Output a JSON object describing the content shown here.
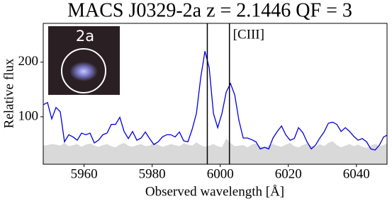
{
  "chart_data": {
    "type": "line",
    "title": "MACS J0329-2a z = 2.1446 QF = 3",
    "x_label": "Observed wavelength  [Å]",
    "y_label": "Relative flux",
    "inset_label": "2a",
    "xlim": [
      5948,
      6049
    ],
    "ylim": [
      13,
      271
    ],
    "xticks": [
      5960,
      5980,
      6000,
      6020,
      6040
    ],
    "yticks": [
      100,
      200
    ],
    "vlines": [
      {
        "x": 5996.2
      },
      {
        "x": 6002.7,
        "label": "[CIII]"
      }
    ],
    "x": [
      5948,
      5949.25,
      5950.5,
      5951.75,
      5953,
      5954.25,
      5955.5,
      5956.75,
      5958,
      5959.25,
      5960.5,
      5961.75,
      5963,
      5964.25,
      5965.5,
      5966.75,
      5968,
      5969.25,
      5970.5,
      5971.75,
      5973,
      5974.25,
      5975.5,
      5976.75,
      5978,
      5979.25,
      5980.5,
      5981.75,
      5983,
      5984.25,
      5985.5,
      5986.75,
      5988,
      5989.25,
      5990.5,
      5991.75,
      5993,
      5994.25,
      5995.5,
      5996.75,
      5998,
      5999.25,
      6000.5,
      6001.75,
      6003,
      6004.25,
      6005.5,
      6006.75,
      6008,
      6009.25,
      6010.5,
      6011.75,
      6013,
      6014.25,
      6015.5,
      6016.75,
      6018,
      6019.25,
      6020.5,
      6021.75,
      6023,
      6024.25,
      6025.5,
      6026.75,
      6028,
      6029.25,
      6030.5,
      6031.75,
      6033,
      6034.25,
      6035.5,
      6036.75,
      6038,
      6039.25,
      6040.5,
      6041.75,
      6043,
      6044.25,
      6045.5,
      6046.75,
      6048,
      6049.25
    ],
    "series": [
      {
        "color": "#d9d9d9",
        "fill": true,
        "values": [
          47,
          48,
          50,
          49,
          47,
          52,
          46,
          48,
          50,
          45,
          49,
          51,
          47,
          45,
          48,
          50,
          46,
          44,
          49,
          52,
          47,
          45,
          48,
          50,
          46,
          47,
          52,
          49,
          45,
          47,
          50,
          48,
          46,
          51,
          49,
          47,
          53,
          48,
          45,
          47,
          50,
          46,
          44,
          60,
          52,
          46,
          47,
          48,
          44,
          49,
          51,
          46,
          43,
          48,
          50,
          47,
          45,
          49,
          52,
          46,
          44,
          48,
          51,
          47,
          45,
          50,
          46,
          52,
          55,
          48,
          44,
          47,
          50,
          46,
          49,
          45,
          43,
          47,
          50,
          46,
          48,
          52
        ]
      },
      {
        "color": "#0000dd",
        "fill": false,
        "values": [
          122,
          126,
          96,
          117,
          109,
          54,
          67,
          63,
          57,
          70,
          67,
          70,
          52,
          57,
          67,
          70,
          86,
          86,
          99,
          73,
          60,
          73,
          57,
          61,
          72,
          60,
          49,
          54,
          63,
          67,
          67,
          63,
          72,
          56,
          54,
          77,
          106,
          171,
          220,
          190,
          106,
          80,
          106,
          145,
          161,
          140,
          93,
          61,
          61,
          58,
          54,
          41,
          44,
          41,
          61,
          73,
          83,
          67,
          57,
          60,
          80,
          71,
          54,
          41,
          48,
          61,
          72,
          88,
          90,
          86,
          73,
          80,
          73,
          64,
          57,
          60,
          54,
          41,
          39,
          48,
          63,
          67
        ]
      }
    ]
  }
}
